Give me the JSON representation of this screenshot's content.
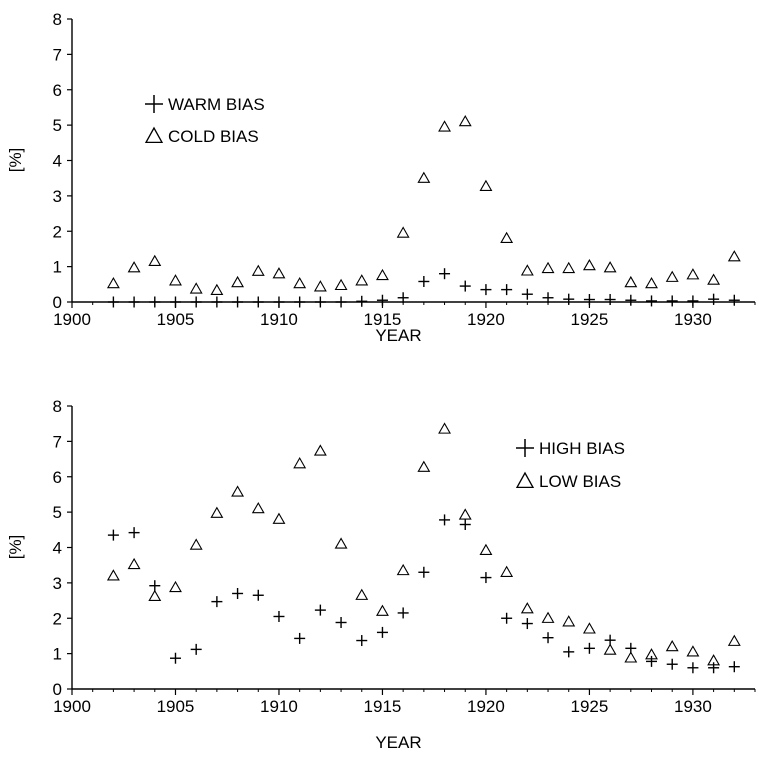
{
  "chart_data": [
    {
      "type": "scatter",
      "xlabel": "YEAR",
      "ylabel": "[%]",
      "xlim": [
        1900,
        1933
      ],
      "ylim": [
        0,
        8
      ],
      "xticks": [
        1900,
        1905,
        1910,
        1915,
        1920,
        1925,
        1930
      ],
      "yticks": [
        0,
        1,
        2,
        3,
        4,
        5,
        6,
        7,
        8
      ],
      "grid": false,
      "legend_position": "top-left",
      "series": [
        {
          "name": "WARM BIAS",
          "marker": "plus",
          "x": [
            1902,
            1903,
            1904,
            1905,
            1906,
            1907,
            1908,
            1909,
            1910,
            1911,
            1912,
            1913,
            1914,
            1915,
            1916,
            1917,
            1918,
            1919,
            1920,
            1921,
            1922,
            1923,
            1924,
            1925,
            1926,
            1927,
            1928,
            1929,
            1930,
            1931,
            1932
          ],
          "y": [
            0,
            0,
            0,
            0,
            0,
            0,
            0,
            0,
            0,
            0,
            0,
            0,
            0.02,
            0.05,
            0.12,
            0.58,
            0.8,
            0.45,
            0.35,
            0.35,
            0.22,
            0.12,
            0.08,
            0.07,
            0.07,
            0.05,
            0.03,
            0.03,
            0.03,
            0.08,
            0.05
          ]
        },
        {
          "name": "COLD BIAS",
          "marker": "triangle",
          "x": [
            1902,
            1903,
            1904,
            1905,
            1906,
            1907,
            1908,
            1909,
            1910,
            1911,
            1912,
            1913,
            1914,
            1915,
            1916,
            1917,
            1918,
            1919,
            1920,
            1921,
            1922,
            1923,
            1924,
            1925,
            1926,
            1927,
            1928,
            1929,
            1930,
            1931,
            1932
          ],
          "y": [
            0.52,
            0.97,
            1.15,
            0.6,
            0.37,
            0.33,
            0.55,
            0.87,
            0.8,
            0.52,
            0.43,
            0.47,
            0.6,
            0.75,
            1.95,
            3.5,
            4.95,
            5.1,
            3.27,
            1.8,
            0.88,
            0.95,
            0.95,
            1.03,
            0.97,
            0.55,
            0.52,
            0.7,
            0.77,
            0.62,
            1.28
          ]
        }
      ]
    },
    {
      "type": "scatter",
      "xlabel": "YEAR",
      "ylabel": "[%]",
      "xlim": [
        1900,
        1933
      ],
      "ylim": [
        0,
        8
      ],
      "xticks": [
        1900,
        1905,
        1910,
        1915,
        1920,
        1925,
        1930
      ],
      "yticks": [
        0,
        1,
        2,
        3,
        4,
        5,
        6,
        7,
        8
      ],
      "grid": false,
      "legend_position": "top-right",
      "series": [
        {
          "name": "HIGH BIAS",
          "marker": "plus",
          "x": [
            1902,
            1903,
            1904,
            1905,
            1906,
            1907,
            1908,
            1909,
            1910,
            1911,
            1912,
            1913,
            1914,
            1915,
            1916,
            1917,
            1918,
            1919,
            1920,
            1921,
            1922,
            1923,
            1924,
            1925,
            1926,
            1927,
            1928,
            1929,
            1930,
            1931,
            1932
          ],
          "y": [
            4.35,
            4.42,
            2.92,
            0.87,
            1.12,
            2.47,
            2.7,
            2.65,
            2.05,
            1.43,
            2.23,
            1.88,
            1.37,
            1.6,
            2.15,
            3.3,
            4.78,
            4.65,
            3.15,
            2.0,
            1.85,
            1.45,
            1.05,
            1.15,
            1.38,
            1.15,
            0.78,
            0.7,
            0.6,
            0.6,
            0.63
          ]
        },
        {
          "name": "LOW BIAS",
          "marker": "triangle",
          "x": [
            1902,
            1903,
            1904,
            1905,
            1906,
            1907,
            1908,
            1909,
            1910,
            1911,
            1912,
            1913,
            1914,
            1915,
            1916,
            1917,
            1918,
            1919,
            1920,
            1921,
            1922,
            1923,
            1924,
            1925,
            1926,
            1927,
            1928,
            1929,
            1930,
            1931,
            1932
          ],
          "y": [
            3.2,
            3.52,
            2.62,
            2.87,
            4.07,
            4.97,
            5.57,
            5.1,
            4.8,
            6.37,
            6.73,
            4.1,
            2.65,
            2.2,
            3.35,
            6.27,
            7.35,
            4.92,
            3.92,
            3.3,
            2.27,
            2.0,
            1.9,
            1.7,
            1.1,
            0.88,
            0.97,
            1.2,
            1.05,
            0.8,
            1.35
          ]
        }
      ]
    }
  ]
}
